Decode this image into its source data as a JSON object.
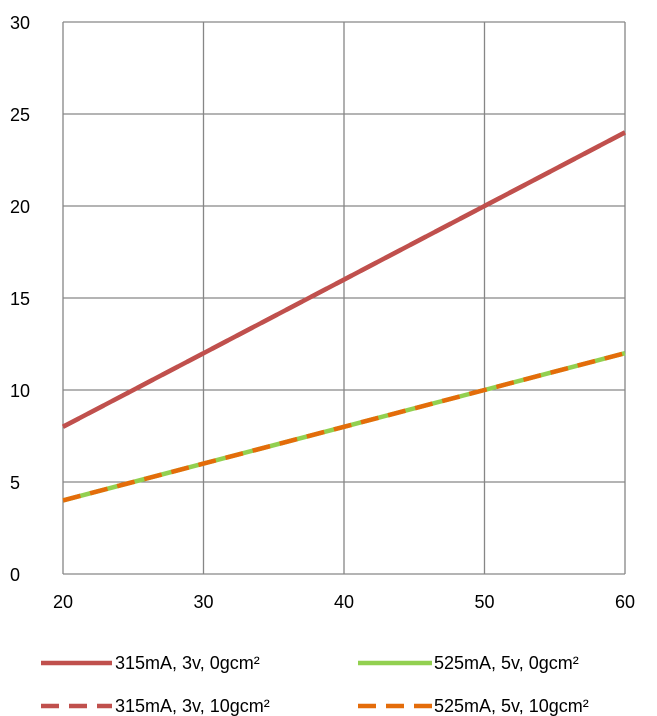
{
  "chart_data": {
    "type": "line",
    "x_ticks": [
      "20",
      "30",
      "40",
      "50",
      "60"
    ],
    "y_ticks": [
      "0",
      "5",
      "10",
      "15",
      "20",
      "25",
      "30"
    ],
    "xlim": [
      20,
      60
    ],
    "ylim": [
      0,
      30
    ],
    "grid": true,
    "legend_position": "bottom",
    "series": [
      {
        "name": "315mA, 3v, 0gcm²",
        "color": "#C0504D",
        "dash": "solid",
        "points": [
          [
            20,
            8
          ],
          [
            30,
            12
          ],
          [
            40,
            16
          ],
          [
            50,
            20
          ],
          [
            60,
            24
          ]
        ]
      },
      {
        "name": "525mA, 5v, 0gcm²",
        "color": "#92D050",
        "dash": "solid",
        "points": [
          [
            20,
            4
          ],
          [
            30,
            6
          ],
          [
            40,
            8
          ],
          [
            50,
            10
          ],
          [
            60,
            12
          ]
        ]
      },
      {
        "name": "315mA, 3v, 10gcm²",
        "color": "#C0504D",
        "dash": "dashed",
        "points": [
          [
            20,
            8
          ],
          [
            30,
            12
          ],
          [
            40,
            16
          ],
          [
            50,
            20
          ],
          [
            60,
            24
          ]
        ]
      },
      {
        "name": "525mA, 5v, 10gcm²",
        "color": "#E46C0A",
        "dash": "dashed",
        "points": [
          [
            20,
            4
          ],
          [
            30,
            6
          ],
          [
            40,
            8
          ],
          [
            50,
            10
          ],
          [
            60,
            12
          ]
        ]
      }
    ]
  }
}
